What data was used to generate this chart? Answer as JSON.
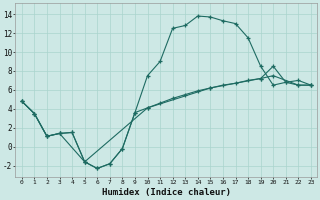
{
  "xlabel": "Humidex (Indice chaleur)",
  "bg_color": "#cde8e5",
  "grid_color": "#aad4ce",
  "line_color": "#1e6b62",
  "curve1_x": [
    0,
    1,
    2,
    3,
    4,
    5,
    6,
    7,
    8,
    9,
    10,
    11,
    12,
    13,
    14,
    15,
    16,
    17,
    18,
    19,
    20,
    21,
    22,
    23
  ],
  "curve1_y": [
    4.8,
    3.5,
    1.1,
    1.4,
    1.5,
    -1.6,
    -2.3,
    -1.8,
    -0.2,
    3.6,
    7.5,
    9.0,
    12.5,
    12.8,
    13.8,
    13.7,
    13.3,
    13.0,
    11.5,
    8.5,
    6.5,
    6.8,
    7.0,
    6.5
  ],
  "curve2_x": [
    0,
    1,
    2,
    3,
    4,
    5,
    6,
    7,
    8,
    9,
    10,
    11,
    12,
    13,
    14,
    15,
    16,
    17,
    18,
    19,
    20,
    21,
    22,
    23
  ],
  "curve2_y": [
    4.8,
    3.5,
    1.1,
    1.4,
    1.5,
    -1.6,
    -2.3,
    -1.8,
    -0.2,
    3.6,
    4.1,
    4.6,
    5.1,
    5.5,
    5.9,
    6.2,
    6.5,
    6.7,
    7.0,
    7.2,
    8.5,
    6.8,
    6.5,
    6.5
  ],
  "curve3_x": [
    0,
    1,
    2,
    3,
    5,
    10,
    15,
    19,
    20,
    22,
    23
  ],
  "curve3_y": [
    4.8,
    3.5,
    1.1,
    1.4,
    -1.6,
    4.1,
    6.2,
    7.2,
    7.5,
    6.5,
    6.5
  ],
  "xlim": [
    -0.5,
    23.5
  ],
  "ylim": [
    -3.2,
    15.2
  ],
  "yticks": [
    -2,
    0,
    2,
    4,
    6,
    8,
    10,
    12,
    14
  ],
  "xticks": [
    0,
    1,
    2,
    3,
    4,
    5,
    6,
    7,
    8,
    9,
    10,
    11,
    12,
    13,
    14,
    15,
    16,
    17,
    18,
    19,
    20,
    21,
    22,
    23
  ]
}
